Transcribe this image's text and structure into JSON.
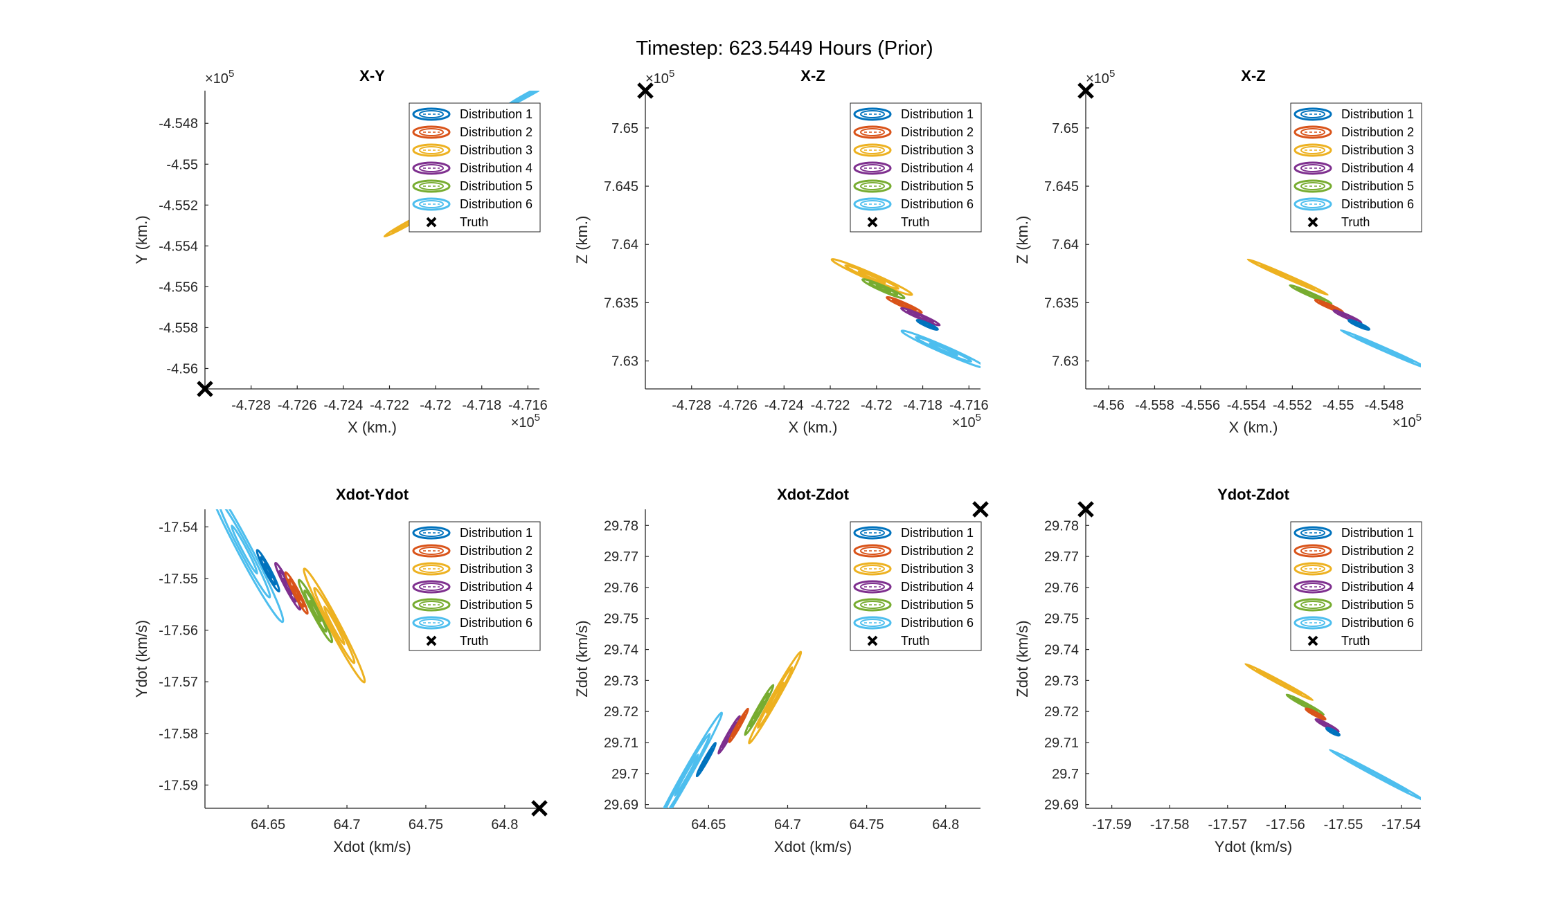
{
  "figure_title": "Timestep: 623.5449 Hours (Prior)",
  "legend": {
    "entries": [
      "Distribution 1",
      "Distribution 2",
      "Distribution 3",
      "Distribution 4",
      "Distribution 5",
      "Distribution 6",
      "Truth"
    ]
  },
  "colors": [
    "#0072BD",
    "#D95319",
    "#EDB120",
    "#7E2F8E",
    "#77AC30",
    "#4DBEEE"
  ],
  "truth_color": "#000000",
  "chart_data": [
    {
      "type": "scatter",
      "title": "X-Y",
      "xlabel": "X (km.)",
      "ylabel": "Y (km.)",
      "xexp": "×10",
      "xexp_power": "5",
      "yexp": "×10",
      "yexp_power": "5",
      "xlim": [
        -4.73,
        -4.7155
      ],
      "ylim": [
        -4.561,
        -4.5464
      ],
      "xticks": [
        -4.728,
        -4.726,
        -4.724,
        -4.722,
        -4.72,
        -4.718,
        -4.716
      ],
      "xtick_labels": [
        "-4.728",
        "-4.726",
        "-4.724",
        "-4.722",
        "-4.72",
        "-4.718",
        "-4.716"
      ],
      "yticks": [
        -4.548,
        -4.55,
        -4.552,
        -4.554,
        -4.556,
        -4.558,
        -4.56
      ],
      "ytick_labels": [
        "-4.548",
        "-4.55",
        "-4.552",
        "-4.554",
        "-4.556",
        "-4.558",
        "-4.56"
      ],
      "truth": [
        -4.73,
        -4.561
      ],
      "distributions": [
        {
          "name": "Distribution 3",
          "center": [
            -4.7212,
            -4.5529
          ],
          "half_length": 0.0012,
          "half_width": 8e-05,
          "angle": 32
        },
        {
          "name": "Distribution 6",
          "center": [
            -4.716,
            -4.5466
          ],
          "half_length": 0.0012,
          "half_width": 8e-05,
          "angle": 32
        }
      ]
    },
    {
      "type": "scatter",
      "title": "X-Z",
      "xlabel": "X (km.)",
      "ylabel": "Z (km.)",
      "xexp": "×10",
      "xexp_power": "5",
      "yexp": "×10",
      "yexp_power": "5",
      "xlim": [
        -4.73,
        -4.7155
      ],
      "ylim": [
        7.6276,
        7.6532
      ],
      "xticks": [
        -4.728,
        -4.726,
        -4.724,
        -4.722,
        -4.72,
        -4.718,
        -4.716
      ],
      "xtick_labels": [
        "-4.728",
        "-4.726",
        "-4.724",
        "-4.722",
        "-4.72",
        "-4.718",
        "-4.716"
      ],
      "yticks": [
        7.65,
        7.645,
        7.64,
        7.635,
        7.63
      ],
      "ytick_labels": [
        "7.65",
        "7.645",
        "7.64",
        "7.635",
        "7.63"
      ],
      "truth": [
        -4.73,
        7.6532
      ],
      "distributions": [
        {
          "name": "Distribution 3",
          "center": [
            -4.7202,
            7.6372
          ],
          "half_length": 0.0023,
          "half_width": 0.0002,
          "angle": -41
        },
        {
          "name": "Distribution 5",
          "center": [
            -4.7197,
            7.6362
          ],
          "half_length": 0.0012,
          "half_width": 0.00015,
          "angle": -41
        },
        {
          "name": "Distribution 2",
          "center": [
            -4.7188,
            7.6348
          ],
          "half_length": 0.001,
          "half_width": 0.00012,
          "angle": -41
        },
        {
          "name": "Distribution 4",
          "center": [
            -4.7181,
            7.6338
          ],
          "half_length": 0.0011,
          "half_width": 0.00012,
          "angle": -41
        },
        {
          "name": "Distribution 1",
          "center": [
            -4.7178,
            7.6331
          ],
          "half_length": 0.0006,
          "half_width": 8e-05,
          "angle": -41
        },
        {
          "name": "Distribution 6",
          "center": [
            -4.7171,
            7.631
          ],
          "half_length": 0.0024,
          "half_width": 0.0002,
          "angle": -41
        }
      ]
    },
    {
      "type": "scatter",
      "title": "X-Z",
      "xlabel": "X (km.)",
      "ylabel": "Z (km.)",
      "xexp": "×10",
      "xexp_power": "5",
      "yexp": "×10",
      "yexp_power": "5",
      "xlim": [
        -4.561,
        -4.5464
      ],
      "ylim": [
        7.6276,
        7.6532
      ],
      "xticks": [
        -4.56,
        -4.558,
        -4.556,
        -4.554,
        -4.552,
        -4.55,
        -4.548
      ],
      "xtick_labels": [
        "-4.56",
        "-4.558",
        "-4.556",
        "-4.554",
        "-4.552",
        "-4.55",
        "-4.548"
      ],
      "yticks": [
        7.65,
        7.645,
        7.64,
        7.635,
        7.63
      ],
      "ytick_labels": [
        "7.65",
        "7.645",
        "7.64",
        "7.635",
        "7.63"
      ],
      "truth": [
        -4.561,
        7.6532
      ],
      "distributions": [
        {
          "name": "Distribution 3",
          "center": [
            -4.5522,
            7.6372
          ],
          "half_length": 0.0023,
          "half_width": 7e-05,
          "angle": -41
        },
        {
          "name": "Distribution 5",
          "center": [
            -4.5512,
            7.6357
          ],
          "half_length": 0.0012,
          "half_width": 6e-05,
          "angle": -41
        },
        {
          "name": "Distribution 2",
          "center": [
            -4.5504,
            7.6347
          ],
          "half_length": 0.0008,
          "half_width": 5e-05,
          "angle": -41
        },
        {
          "name": "Distribution 4",
          "center": [
            -4.5496,
            7.6338
          ],
          "half_length": 0.0008,
          "half_width": 5e-05,
          "angle": -41
        },
        {
          "name": "Distribution 1",
          "center": [
            -4.5491,
            7.6331
          ],
          "half_length": 0.0006,
          "half_width": 4e-05,
          "angle": -41
        },
        {
          "name": "Distribution 6",
          "center": [
            -4.548,
            7.631
          ],
          "half_length": 0.0025,
          "half_width": 7e-05,
          "angle": -41
        }
      ]
    },
    {
      "type": "scatter",
      "title": "Xdot-Ydot",
      "xlabel": "Xdot (km/s)",
      "ylabel": "Ydot (km/s)",
      "xlim": [
        64.61,
        64.822
      ],
      "ylim": [
        -17.5945,
        -17.5366
      ],
      "xticks": [
        64.65,
        64.7,
        64.75,
        64.8
      ],
      "xtick_labels": [
        "64.65",
        "64.7",
        "64.75",
        "64.8"
      ],
      "yticks": [
        -17.54,
        -17.55,
        -17.56,
        -17.57,
        -17.58,
        -17.59
      ],
      "ytick_labels": [
        "-17.54",
        "-17.55",
        "-17.56",
        "-17.57",
        "-17.58",
        "-17.59"
      ],
      "truth": [
        64.822,
        -17.5945
      ],
      "distributions": [
        {
          "name": "Distribution 6",
          "center": [
            64.635,
            -17.5444
          ],
          "half_length": 0.028,
          "half_width": 0.0015,
          "angle": -30
        },
        {
          "name": "Distribution 1",
          "center": [
            64.65,
            -17.5485
          ],
          "half_length": 0.008,
          "half_width": 0.0006,
          "angle": -30
        },
        {
          "name": "Distribution 4",
          "center": [
            64.6625,
            -17.5515
          ],
          "half_length": 0.009,
          "half_width": 0.0006,
          "angle": -30
        },
        {
          "name": "Distribution 2",
          "center": [
            64.668,
            -17.5528
          ],
          "half_length": 0.008,
          "half_width": 0.0006,
          "angle": -30
        },
        {
          "name": "Distribution 5",
          "center": [
            64.68,
            -17.5563
          ],
          "half_length": 0.012,
          "half_width": 0.0008,
          "angle": -30
        },
        {
          "name": "Distribution 3",
          "center": [
            64.692,
            -17.5591
          ],
          "half_length": 0.022,
          "half_width": 0.0012,
          "angle": -30
        }
      ]
    },
    {
      "type": "scatter",
      "title": "Xdot-Zdot",
      "xlabel": "Xdot (km/s)",
      "ylabel": "Zdot (km/s)",
      "xlim": [
        64.61,
        64.822
      ],
      "ylim": [
        29.6888,
        29.7852
      ],
      "xticks": [
        64.65,
        64.7,
        64.75,
        64.8
      ],
      "xtick_labels": [
        "64.65",
        "64.7",
        "64.75",
        "64.8"
      ],
      "yticks": [
        29.78,
        29.77,
        29.76,
        29.75,
        29.74,
        29.73,
        29.72,
        29.71,
        29.7,
        29.69
      ],
      "ytick_labels": [
        "29.78",
        "29.77",
        "29.76",
        "29.75",
        "29.74",
        "29.73",
        "29.72",
        "29.71",
        "29.7",
        "29.69"
      ],
      "truth": [
        64.822,
        29.7852
      ],
      "distributions": [
        {
          "name": "Distribution 6",
          "center": [
            64.636,
            29.6995
          ],
          "half_length": 0.03,
          "half_width": 0.0016,
          "angle": 42
        },
        {
          "name": "Distribution 1",
          "center": [
            64.6485,
            29.7045
          ],
          "half_length": 0.008,
          "half_width": 0.0006,
          "angle": 42
        },
        {
          "name": "Distribution 4",
          "center": [
            64.663,
            29.7125
          ],
          "half_length": 0.009,
          "half_width": 0.0007,
          "angle": 42
        },
        {
          "name": "Distribution 2",
          "center": [
            64.669,
            29.7155
          ],
          "half_length": 0.008,
          "half_width": 0.0006,
          "angle": 42
        },
        {
          "name": "Distribution 5",
          "center": [
            64.682,
            29.7205
          ],
          "half_length": 0.012,
          "half_width": 0.0009,
          "angle": 42
        },
        {
          "name": "Distribution 3",
          "center": [
            64.692,
            29.7245
          ],
          "half_length": 0.022,
          "half_width": 0.0013,
          "angle": 42
        }
      ]
    },
    {
      "type": "scatter",
      "title": "Ydot-Zdot",
      "xlabel": "Ydot (km/s)",
      "ylabel": "Zdot (km/s)",
      "xlim": [
        -17.5945,
        -17.5366
      ],
      "ylim": [
        29.6888,
        29.7852
      ],
      "xticks": [
        -17.59,
        -17.58,
        -17.57,
        -17.56,
        -17.55,
        -17.54
      ],
      "xtick_labels": [
        "-17.59",
        "-17.58",
        "-17.57",
        "-17.56",
        "-17.55",
        "-17.54"
      ],
      "yticks": [
        29.78,
        29.77,
        29.76,
        29.75,
        29.74,
        29.73,
        29.72,
        29.71,
        29.7,
        29.69
      ],
      "ytick_labels": [
        "29.78",
        "29.77",
        "29.76",
        "29.75",
        "29.74",
        "29.73",
        "29.72",
        "29.71",
        "29.7",
        "29.69"
      ],
      "truth": [
        -17.5945,
        29.7852
      ],
      "distributions": [
        {
          "name": "Distribution 3",
          "center": [
            -17.5611,
            29.7295
          ],
          "half_length": 0.0082,
          "half_width": 0.00015,
          "angle": -45
        },
        {
          "name": "Distribution 5",
          "center": [
            -17.5566,
            29.7222
          ],
          "half_length": 0.0045,
          "half_width": 0.00012,
          "angle": -45
        },
        {
          "name": "Distribution 2",
          "center": [
            -17.5548,
            29.7192
          ],
          "half_length": 0.0024,
          "half_width": 0.0001,
          "angle": -45
        },
        {
          "name": "Distribution 4",
          "center": [
            -17.5528,
            29.7155
          ],
          "half_length": 0.0028,
          "half_width": 0.0001,
          "angle": -45
        },
        {
          "name": "Distribution 1",
          "center": [
            -17.5518,
            29.7135
          ],
          "half_length": 0.0016,
          "half_width": 8e-05,
          "angle": -45
        },
        {
          "name": "Distribution 6",
          "center": [
            -17.5442,
            29.6995
          ],
          "half_length": 0.0115,
          "half_width": 0.0002,
          "angle": -45
        }
      ]
    }
  ]
}
